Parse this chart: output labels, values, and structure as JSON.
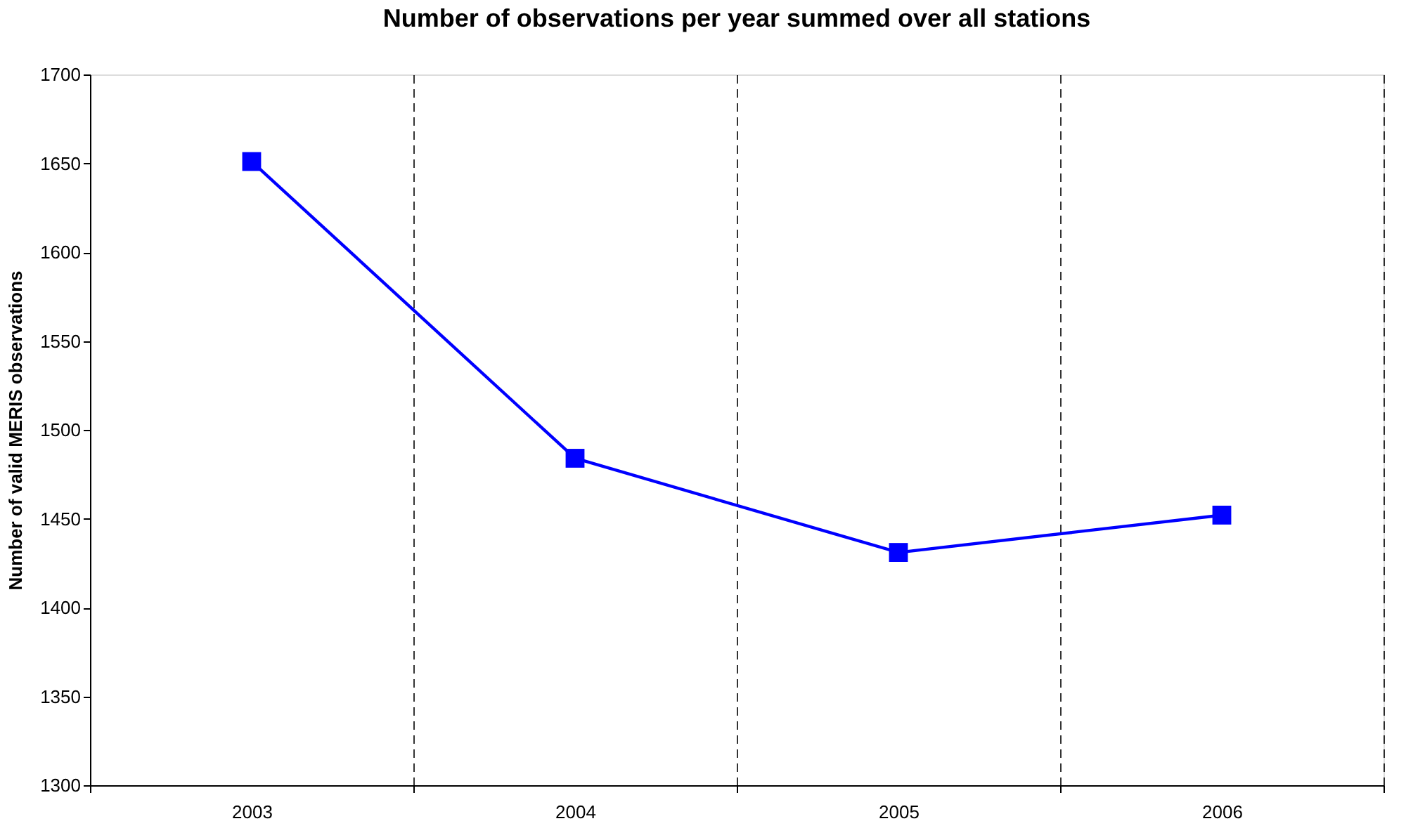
{
  "chart_data": {
    "type": "line",
    "title": "Number of observations per year summed over all stations",
    "ylabel": "Number of valid MERIS observations",
    "categories": [
      "2003",
      "2004",
      "2005",
      "2006"
    ],
    "series": [
      {
        "color": "#0000ff",
        "values": [
          1651,
          1484,
          1431,
          1452
        ]
      }
    ],
    "ylim": [
      1300,
      1700
    ],
    "yticks": [
      1300,
      1350,
      1400,
      1450,
      1500,
      1550,
      1600,
      1650,
      1700
    ],
    "grid": "x",
    "marker": "square",
    "line_style": "solid"
  }
}
